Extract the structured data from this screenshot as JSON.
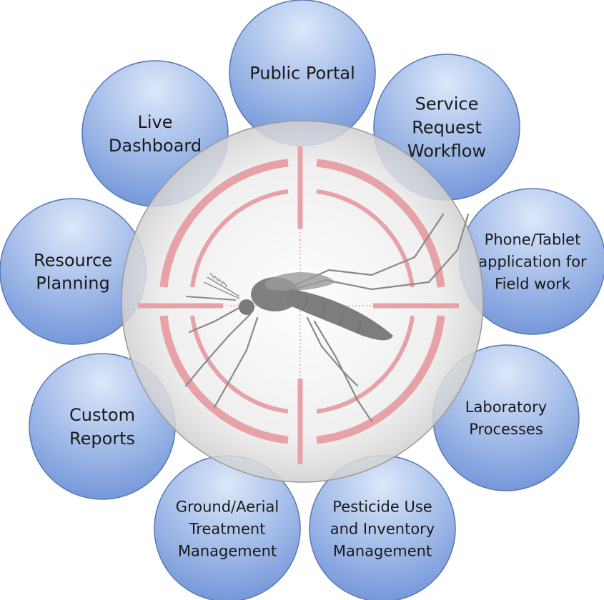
{
  "diagram": {
    "nodes": [
      {
        "id": "public-portal",
        "lines": [
          "Public Portal"
        ]
      },
      {
        "id": "service-request-workflow",
        "lines": [
          "Service",
          "Request",
          "Workflow"
        ]
      },
      {
        "id": "phone-tablet-application",
        "lines": [
          "Phone/Tablet",
          "application for",
          "Field work"
        ]
      },
      {
        "id": "laboratory-processes",
        "lines": [
          "Laboratory",
          "Processes"
        ]
      },
      {
        "id": "pesticide-use-inventory",
        "lines": [
          "Pesticide Use",
          "and Inventory",
          "Management"
        ]
      },
      {
        "id": "ground-aerial-treatment",
        "lines": [
          "Ground/Aerial",
          "Treatment",
          "Management"
        ]
      },
      {
        "id": "custom-reports",
        "lines": [
          "Custom",
          "Reports"
        ]
      },
      {
        "id": "resource-planning",
        "lines": [
          "Resource",
          "Planning"
        ]
      },
      {
        "id": "live-dashboard",
        "lines": [
          "Live",
          "Dashboard"
        ]
      }
    ],
    "center_icon": "mosquito-crosshair-icon",
    "colors": {
      "node_light": "#dce8fa",
      "node_dark": "#6f93d8",
      "node_stroke": "#5a78b4",
      "crosshair": "#e6a2a6",
      "center_fill": "#cfcfcf",
      "mosquito": "#8a8a8a"
    }
  }
}
